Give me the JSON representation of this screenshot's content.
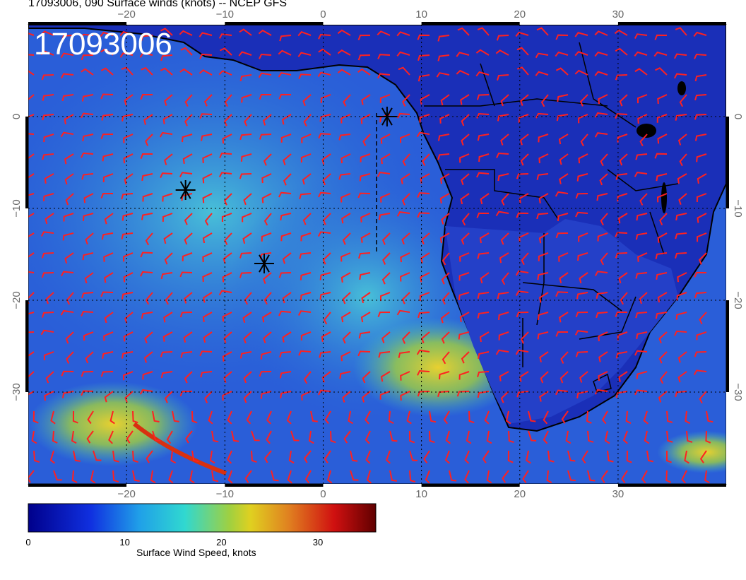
{
  "title": "17093006, 090 Surface winds (knots) -- NCEP GFS",
  "stamp": "17093006",
  "map": {
    "lon_ticks": [
      -20,
      -10,
      0,
      10,
      20,
      30
    ],
    "lat_ticks": [
      0,
      -10,
      -20,
      -30
    ],
    "lon_range": [
      -30,
      41
    ],
    "lat_range": [
      10,
      -40
    ],
    "colors": {
      "ocean_low": "#1f3fd6",
      "ocean_mid": "#3aa8d8",
      "ocean_high": "#e0d040",
      "land": "#1a2fb8",
      "barb": "#ff2020",
      "coast": "#000000"
    },
    "markers": [
      {
        "name": "marker-1",
        "lon": 6.5,
        "lat": 0
      },
      {
        "name": "marker-2",
        "lon": -14,
        "lat": -8
      },
      {
        "name": "marker-3",
        "lon": -6,
        "lat": -16
      }
    ]
  },
  "colorbar": {
    "label": "Surface Wind Speed, knots",
    "ticks": [
      "0",
      "10",
      "20",
      "30"
    ],
    "tick_values": [
      0,
      10,
      20,
      30
    ],
    "max": 36
  }
}
